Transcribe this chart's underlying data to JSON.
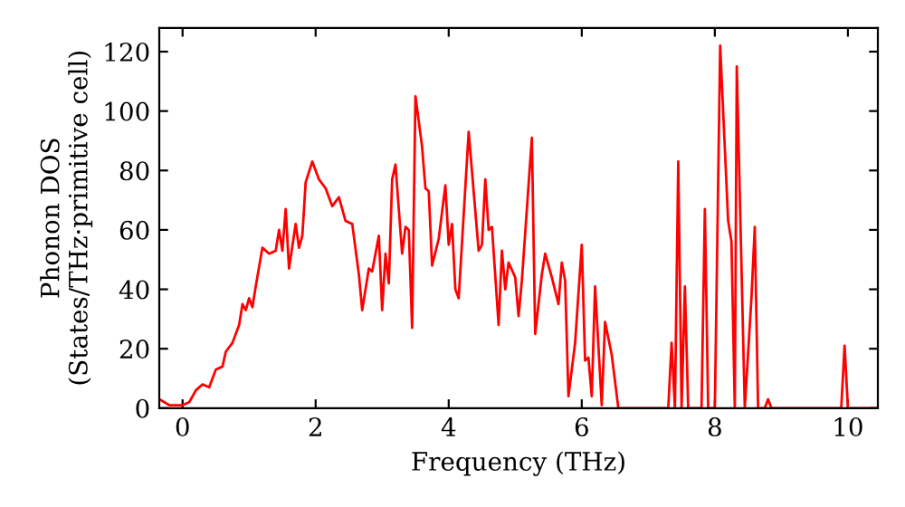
{
  "chart_data": {
    "type": "line",
    "xlabel": "Frequency (THz)",
    "ylabel": "Phonon DOS\n(States/THz·primitive cell)",
    "xlim": [
      -0.35,
      10.45
    ],
    "ylim": [
      0,
      128
    ],
    "xticks": [
      0,
      2,
      4,
      6,
      8,
      10
    ],
    "yticks": [
      0,
      20,
      40,
      60,
      80,
      100,
      120
    ],
    "grid": false,
    "marker": "none",
    "line_style": "solid",
    "series": [
      {
        "color": "#ff0000",
        "x": [
          -0.35,
          -0.2,
          0,
          0.1,
          0.2,
          0.3,
          0.4,
          0.5,
          0.6,
          0.65,
          0.75,
          0.85,
          0.9,
          0.95,
          1.0,
          1.05,
          1.1,
          1.2,
          1.3,
          1.4,
          1.45,
          1.5,
          1.55,
          1.6,
          1.7,
          1.75,
          1.8,
          1.85,
          1.95,
          2.05,
          2.15,
          2.25,
          2.35,
          2.45,
          2.55,
          2.65,
          2.7,
          2.8,
          2.85,
          2.95,
          3.0,
          3.05,
          3.1,
          3.15,
          3.2,
          3.3,
          3.35,
          3.4,
          3.45,
          3.5,
          3.6,
          3.65,
          3.7,
          3.75,
          3.85,
          3.95,
          4.0,
          4.05,
          4.1,
          4.15,
          4.3,
          4.45,
          4.5,
          4.55,
          4.6,
          4.65,
          4.75,
          4.8,
          4.85,
          4.9,
          5.0,
          5.05,
          5.1,
          5.25,
          5.3,
          5.4,
          5.45,
          5.55,
          5.65,
          5.7,
          5.75,
          5.8,
          5.9,
          6.0,
          6.05,
          6.1,
          6.15,
          6.2,
          6.3,
          6.35,
          6.45,
          6.55,
          7.3,
          7.35,
          7.4,
          7.45,
          7.5,
          7.55,
          7.6,
          7.8,
          7.85,
          7.9,
          8.0,
          8.08,
          8.2,
          8.25,
          8.3,
          8.33,
          8.45,
          8.55,
          8.6,
          8.65,
          8.75,
          8.8,
          8.85,
          9.9,
          9.95,
          10.0,
          10.45
        ],
        "values": [
          3,
          1,
          1,
          2,
          6,
          8,
          7,
          13,
          14,
          19,
          22,
          28,
          35,
          33,
          37,
          34,
          41,
          54,
          52,
          53,
          60,
          53,
          67,
          47,
          62,
          54,
          58,
          76,
          83,
          77,
          74,
          68,
          71,
          63,
          62,
          45,
          33,
          47,
          46,
          58,
          33,
          52,
          42,
          77,
          82,
          52,
          61,
          60,
          27,
          105,
          88,
          74,
          73,
          48,
          57,
          75,
          55,
          62,
          40,
          37,
          93,
          53,
          55,
          77,
          60,
          61,
          28,
          53,
          40,
          49,
          44,
          31,
          43,
          91,
          25,
          45,
          52,
          44,
          35,
          49,
          43,
          4,
          22,
          55,
          16,
          17,
          4,
          41,
          1,
          29,
          18,
          0,
          0,
          22,
          0,
          83,
          0,
          41,
          0,
          0,
          67,
          0,
          0,
          122,
          63,
          56,
          0,
          115,
          0,
          37,
          61,
          0,
          0,
          3,
          0,
          0,
          21,
          0,
          0
        ]
      }
    ]
  }
}
